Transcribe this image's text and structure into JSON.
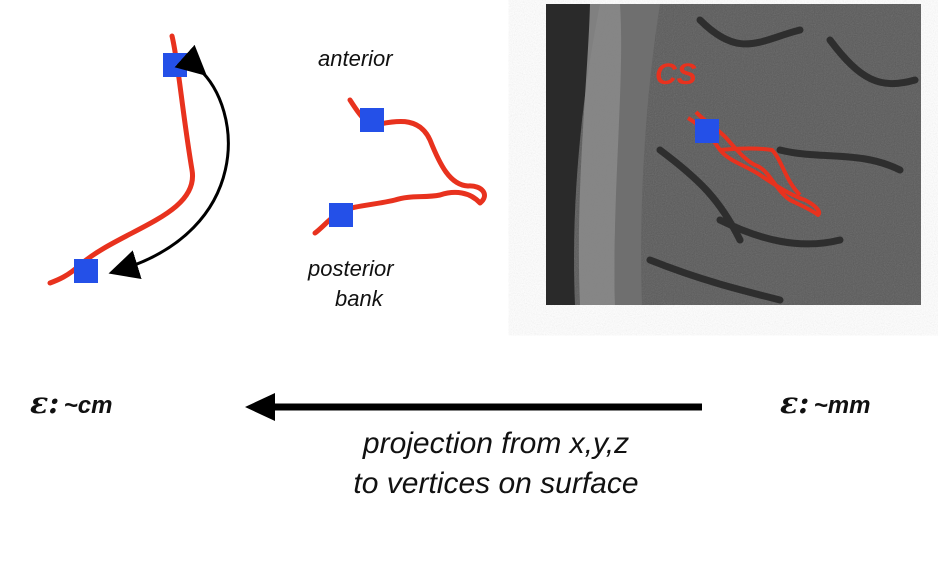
{
  "labels": {
    "anterior": "anterior",
    "posterior": "posterior",
    "bank": "bank",
    "cs": "CS",
    "epsilon_symbol": "ε:",
    "left_error": "~cm",
    "right_error": "~mm",
    "caption_line1": "projection from x,y,z",
    "caption_line2": "to vertices on surface"
  },
  "colors": {
    "curve": "#e8321e",
    "marker": "#2450e8",
    "arrow": "#000000",
    "mri_background": "#5a5a5a"
  }
}
